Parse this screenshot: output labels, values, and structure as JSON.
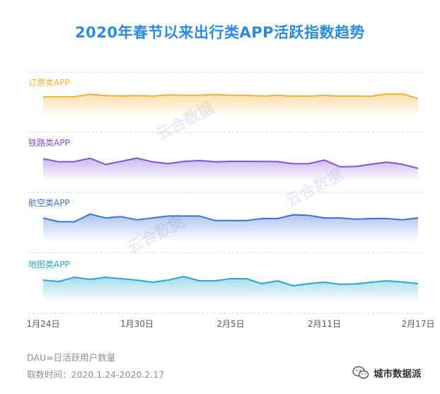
{
  "title": "2020年春节以来出行类APP活跃指数趋势",
  "watermark": "云合数据",
  "footnotes": {
    "note": "DAU=日活跃用户数量",
    "period": "取数时间：2020.1.24-2020.2.17"
  },
  "brand": {
    "name": "城市数据派",
    "icon": "wechat-icon"
  },
  "colors": {
    "tickets": "#f2b135",
    "railway": "#8352dd",
    "flight": "#3d72d6",
    "maps": "#2aa5d6",
    "title": "#2a8be6",
    "grid": "#c9ccd3",
    "axis_text": "#555a63"
  },
  "chart_data": {
    "type": "area",
    "x": [
      "1.24",
      "1.25",
      "1.26",
      "1.27",
      "1.28",
      "1.29",
      "1.30",
      "1.31",
      "2.1",
      "2.2",
      "2.3",
      "2.4",
      "2.5",
      "2.6",
      "2.7",
      "2.8",
      "2.9",
      "2.10",
      "2.11",
      "2.12",
      "2.13",
      "2.14",
      "2.15",
      "2.16",
      "2.17"
    ],
    "x_ticks": [
      "1月24日",
      "1月30日",
      "2月5日",
      "2月11日",
      "2月17日"
    ],
    "x_tick_positions": [
      "1.24",
      "1.30",
      "2.5",
      "2.11",
      "2.17"
    ],
    "y_unit": "relative index (no axis shown)",
    "grid": "dashed separators between panels",
    "series": [
      {
        "name": "订票类APP",
        "color": "#f2b135",
        "values": [
          0.24,
          0.24,
          0.24,
          0.52,
          0.38,
          0.33,
          0.38,
          0.33,
          0.45,
          0.4,
          0.4,
          0.5,
          0.4,
          0.4,
          0.33,
          0.4,
          0.31,
          0.31,
          0.4,
          0.31,
          0.31,
          0.31,
          0.55,
          0.55,
          0.05
        ]
      },
      {
        "name": "铁路类APP",
        "color": "#8352dd",
        "values": [
          0.62,
          0.42,
          0.43,
          0.65,
          0.25,
          0.45,
          0.66,
          0.42,
          0.3,
          0.45,
          0.5,
          0.42,
          0.45,
          0.45,
          0.44,
          0.43,
          0.3,
          0.3,
          0.53,
          0.1,
          0.12,
          0.27,
          0.4,
          0.26,
          0.0
        ]
      },
      {
        "name": "航空类APP",
        "color": "#3d72d6",
        "values": [
          0.55,
          0.25,
          0.25,
          0.85,
          0.55,
          0.65,
          0.4,
          0.55,
          0.7,
          0.7,
          0.7,
          0.35,
          0.35,
          0.35,
          0.5,
          0.5,
          0.8,
          0.75,
          0.55,
          0.55,
          0.45,
          0.5,
          0.5,
          0.4,
          0.55
        ]
      },
      {
        "name": "地图类APP",
        "color": "#2aa5d6",
        "values": [
          0.55,
          0.45,
          0.75,
          0.6,
          0.75,
          0.65,
          0.55,
          0.4,
          0.55,
          0.8,
          0.5,
          0.5,
          0.65,
          0.65,
          0.3,
          0.5,
          0.15,
          0.3,
          0.4,
          0.25,
          0.28,
          0.4,
          0.5,
          0.42,
          0.3
        ]
      }
    ]
  }
}
